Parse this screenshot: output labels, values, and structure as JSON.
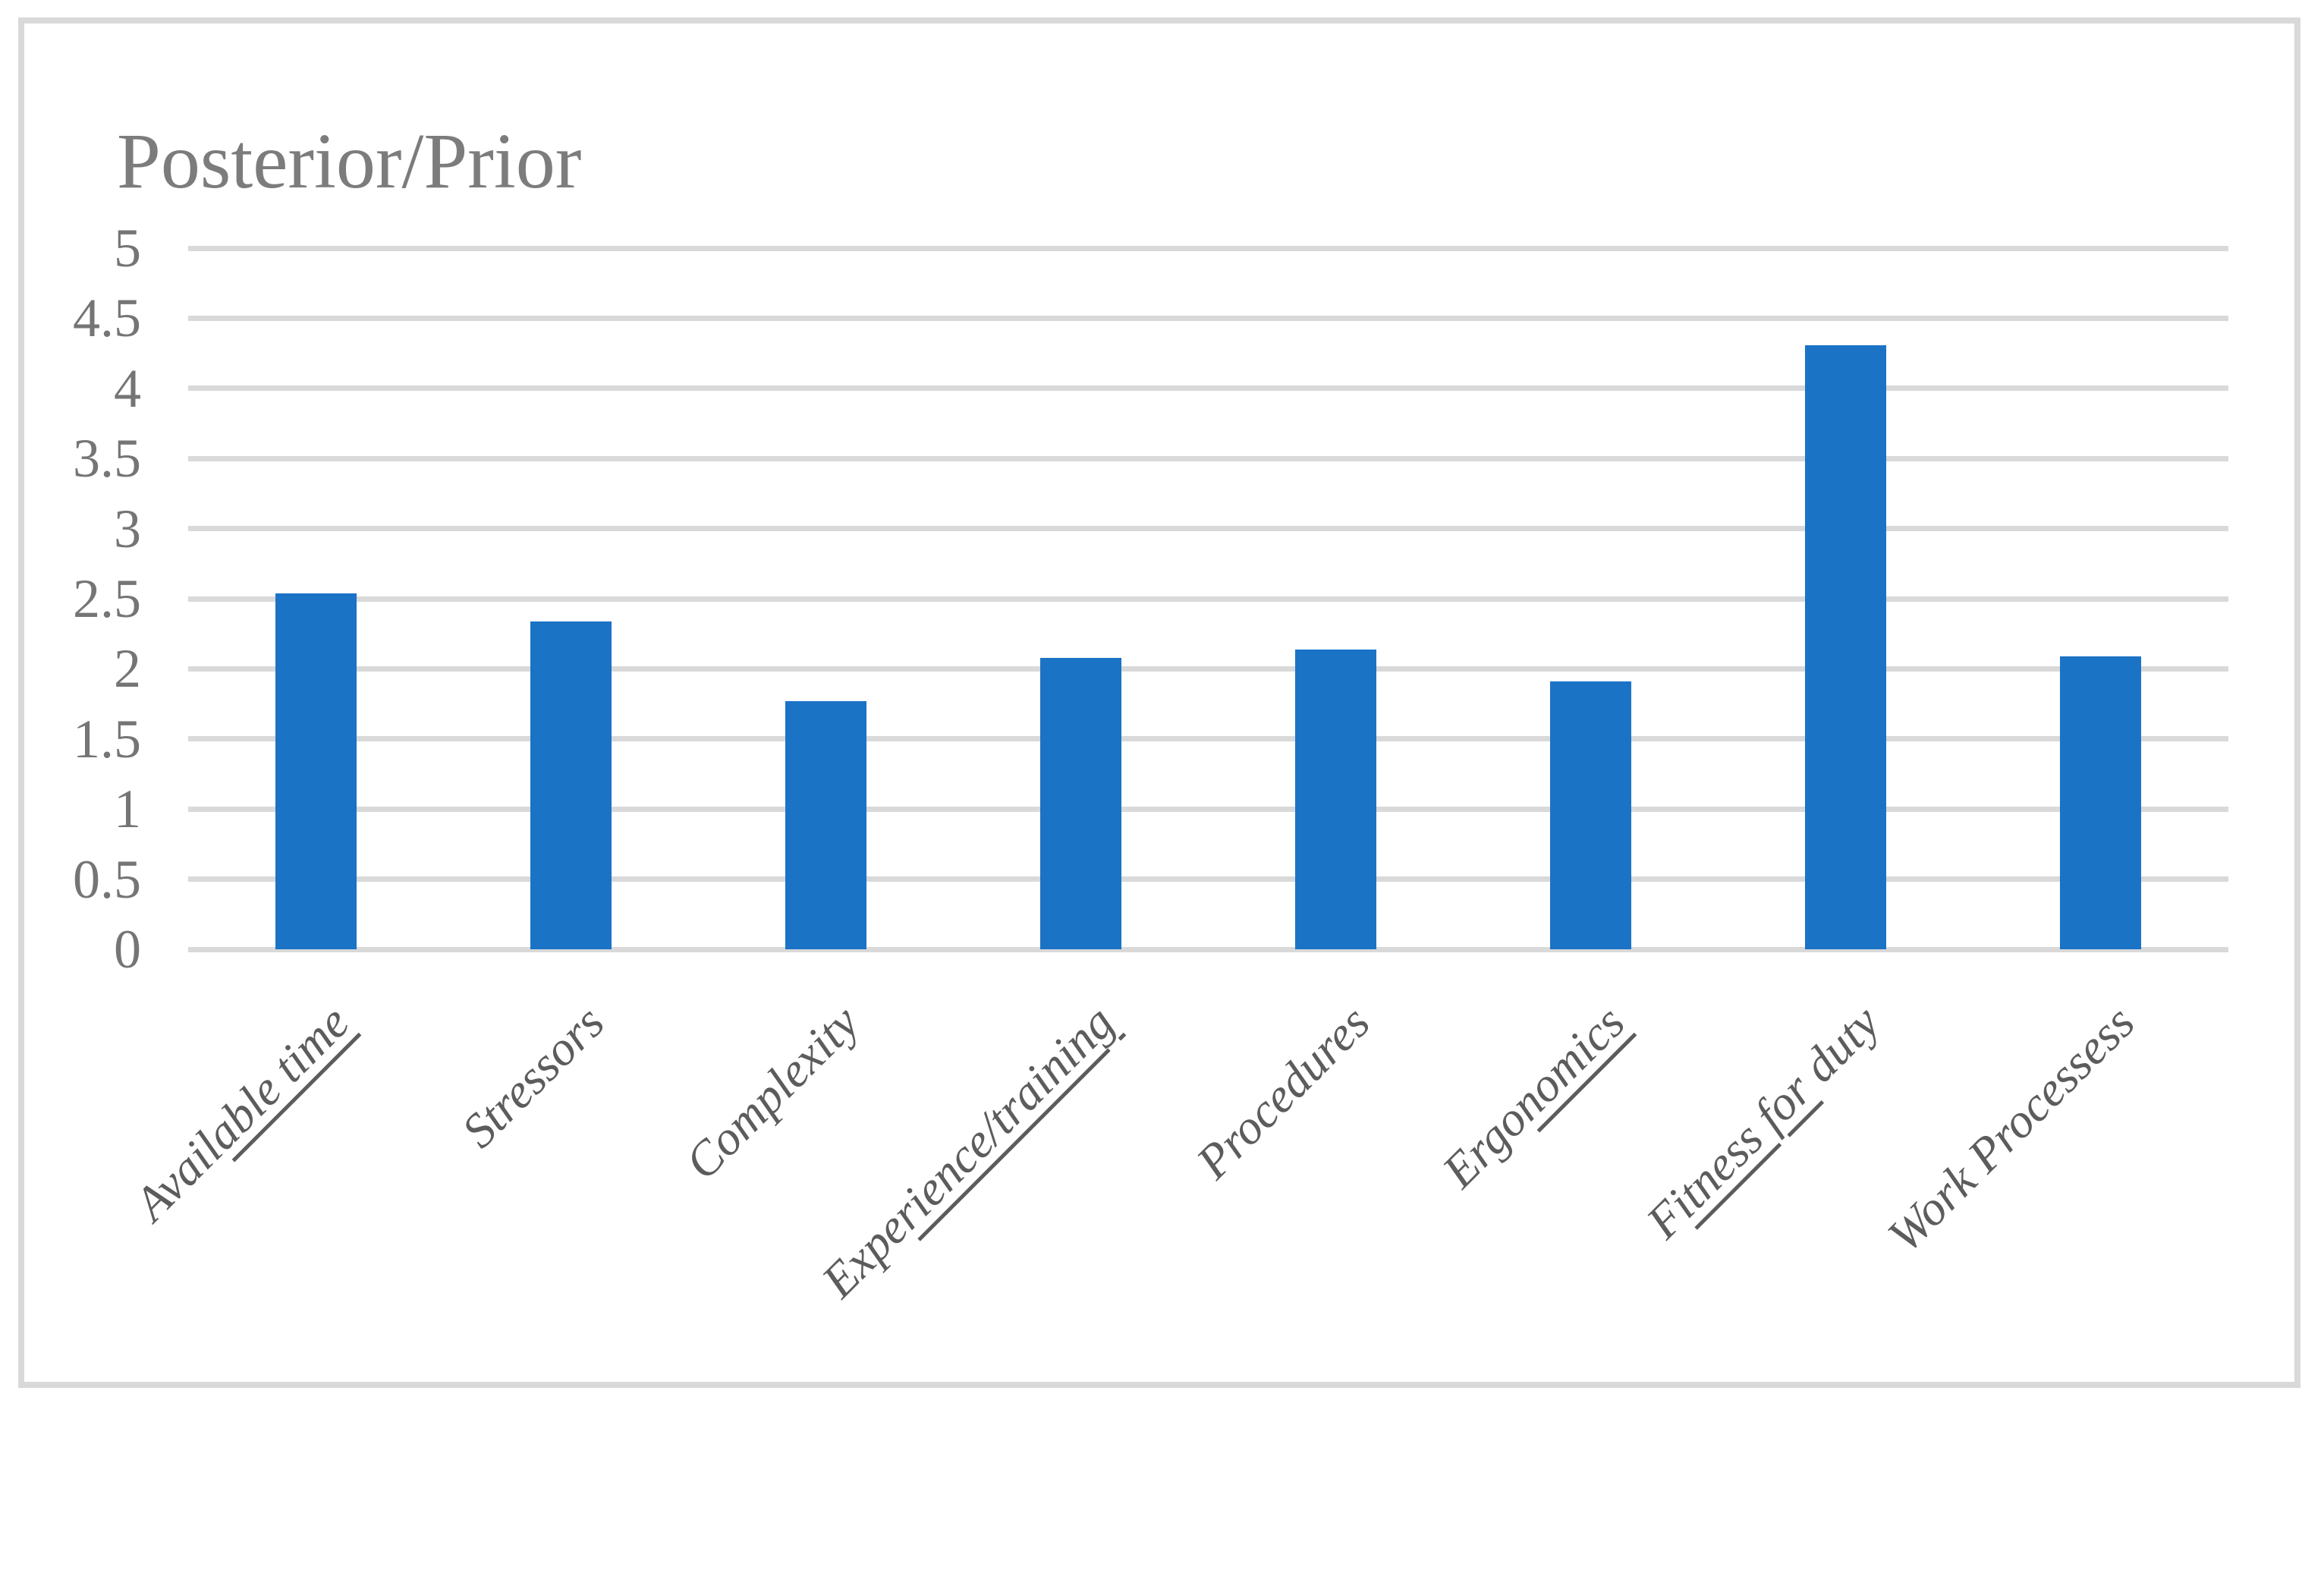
{
  "chart_data": {
    "type": "bar",
    "title": "Posterior/Prior",
    "categories": [
      "Available time",
      "Stressors",
      "Complexity",
      "Experience/training",
      "Procedures",
      "Ergonomics",
      "Fitness for duty",
      "Work Processess"
    ],
    "values": [
      2.54,
      2.34,
      1.77,
      2.08,
      2.14,
      1.91,
      4.31,
      2.09
    ],
    "xlabel": "",
    "ylabel": "",
    "ylim": [
      0,
      5
    ],
    "yticks": [
      0,
      0.5,
      1,
      1.5,
      2,
      2.5,
      3,
      3.5,
      4,
      4.5,
      5
    ],
    "ytick_labels": [
      "0",
      "0.5",
      "1",
      "1.5",
      "2",
      "2.5",
      "3",
      "3.5",
      "4",
      "4.5",
      "5"
    ],
    "grid": true,
    "legend": "none",
    "category_labels_rotation_deg": 45,
    "category_label_parts": [
      {
        "pre": "Avail",
        "under": "able time",
        "post": ""
      },
      {
        "pre": "Stressors",
        "under": "",
        "post": ""
      },
      {
        "pre": "Complexity",
        "under": "",
        "post": ""
      },
      {
        "pre": "Expe",
        "under": "rience/training",
        "post": ""
      },
      {
        "pre": "Procedures",
        "under": "",
        "post": ""
      },
      {
        "pre": "Ergo",
        "under": "nomics",
        "post": ""
      },
      {
        "pre": "F",
        "under": "itness for",
        "post": " duty"
      },
      {
        "pre": "Work Processess",
        "under": "",
        "post": ""
      }
    ],
    "bar_color": "#1B73C6",
    "gridline_color": "#D9D9D9",
    "axis_line_color": "#D9D9D9",
    "frame_border_color": "#D9D9D9",
    "title_color": "#7C7C7C",
    "ytick_color": "#757575",
    "category_label_color": "#5C5C5C"
  }
}
